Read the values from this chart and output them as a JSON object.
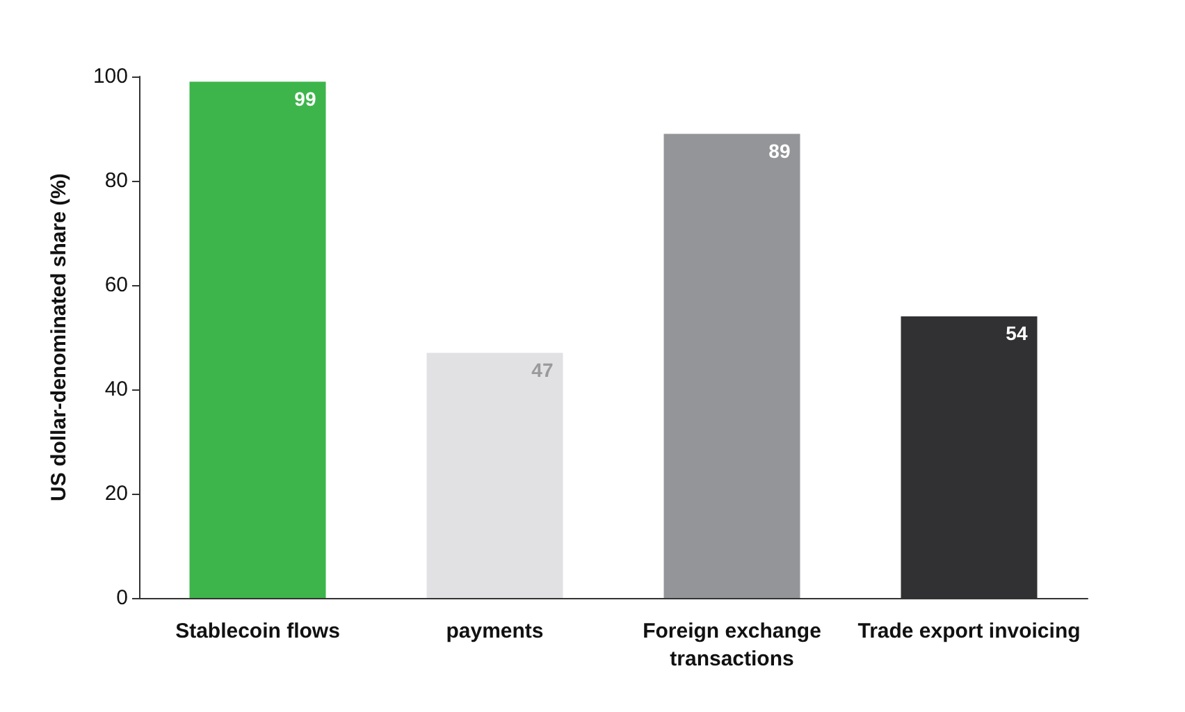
{
  "chart_data": {
    "type": "bar",
    "categories": [
      "Stablecoin flows",
      "payments",
      "Foreign exchange\ntransactions",
      "Trade export invoicing"
    ],
    "values": [
      99,
      47,
      89,
      54
    ],
    "colors": [
      "#3db54a",
      "#e1e1e3",
      "#939598",
      "#313133"
    ],
    "ylabel": "US dollar-denominated share (%)",
    "ylim": [
      0,
      100
    ],
    "yticks": [
      0,
      20,
      40,
      60,
      80,
      100
    ],
    "data_labels": true,
    "grid": false
  }
}
